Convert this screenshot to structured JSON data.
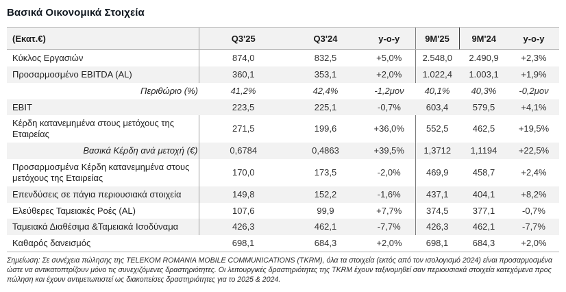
{
  "page": {
    "title": "Βασικά Οικονομικά Στοιχεία"
  },
  "colors": {
    "title_text": "#111820",
    "header_bg": "#f2f2f2",
    "stripe_bg": "#f2f2f2",
    "outer_border": "#b3b3b3",
    "separator_light": "#9c9c9c",
    "separator_dark": "#7d7d7d",
    "header_mid_divider": "#3c3c3c"
  },
  "table": {
    "unit_header": "(Εκατ.€)",
    "columns": [
      "Q3'25",
      "Q3'24",
      "y-o-y",
      "9M'25",
      "9M'24",
      "y-o-y"
    ],
    "rows": [
      {
        "label": "Κύκλος Εργασιών",
        "values": [
          "874,0",
          "832,5",
          "+5,0%",
          "2.548,0",
          "2.490,9",
          "+2,3%"
        ],
        "italic": "",
        "label_align": "left",
        "separators": true
      },
      {
        "label": "Προσαρμοσμένο EBITDA (AL)",
        "values": [
          "360,1",
          "353,1",
          "+2,0%",
          "1.022,4",
          "1.003,1",
          "+1,9%"
        ],
        "italic": "",
        "label_align": "left",
        "separators": true
      },
      {
        "label": "Περιθώριο (%)",
        "values": [
          "41,2%",
          "42,4%",
          "-1,2μον",
          "40,1%",
          "40,3%",
          "-0,2μον"
        ],
        "italic": "row",
        "label_align": "right",
        "separators": false
      },
      {
        "label": "EBIT",
        "values": [
          "223,5",
          "225,1",
          "-0,7%",
          "603,4",
          "579,5",
          "+4,1%"
        ],
        "italic": "",
        "label_align": "left",
        "separators": false
      },
      {
        "label": "Κέρδη κατανεμημένα στους μετόχους της Εταιρείας",
        "values": [
          "271,5",
          "199,6",
          "+36,0%",
          "552,5",
          "462,5",
          "+19,5%"
        ],
        "italic": "",
        "label_align": "left",
        "separators": true
      },
      {
        "label": "Βασικά Κέρδη ανά μετοχή (€)",
        "values": [
          "0,6784",
          "0,4863",
          "+39,5%",
          "1,3712",
          "1,1194",
          "+22,5%"
        ],
        "italic": "label",
        "label_align": "right",
        "separators": true
      },
      {
        "label": "Προσαρμοσμένα Κέρδη κατανεμημένα στους μετόχους της Εταιρείας",
        "values": [
          "170,0",
          "173,5",
          "-2,0%",
          "469,9",
          "458,7",
          "+2,4%"
        ],
        "italic": "",
        "label_align": "left",
        "separators": true
      },
      {
        "label": "Επενδύσεις σε πάγια περιουσιακά στοιχεία",
        "values": [
          "149,8",
          "152,2",
          "-1,6%",
          "437,1",
          "404,1",
          "+8,2%"
        ],
        "italic": "",
        "label_align": "left",
        "separators": true
      },
      {
        "label": "Ελεύθερες Ταμειακές Ροές (AL)",
        "values": [
          "107,6",
          "99,9",
          "+7,7%",
          "374,5",
          "377,1",
          "-0,7%"
        ],
        "italic": "",
        "label_align": "left",
        "separators": true
      },
      {
        "label": "Ταμειακά Διαθέσιμα &Ταμειακά Ισοδύναμα",
        "values": [
          "426,3",
          "462,1",
          "-7,7%",
          "426,3",
          "462,1",
          "-7,7%"
        ],
        "italic": "",
        "label_align": "left",
        "separators": true
      },
      {
        "label": "Καθαρός δανεισμός",
        "values": [
          "698,1",
          "684,3",
          "+2,0%",
          "698,1",
          "684,3",
          "+2,0%"
        ],
        "italic": "",
        "label_align": "left",
        "separators": false
      }
    ]
  },
  "footnote": "Σημείωση: Σε συνέχεια πώλησης της TELEKOM ROMANIA MOBILE COMMUNICATIONS (TKRM), όλα τα στοιχεία (εκτός από τον ισολογισμό 2024) είναι προσαρμοσμένα ώστε να αντικατοπτρίζουν μόνο τις συνεχιζόμενες δραστηριότητες. Οι λειτουργικές δραστηριότητες της TKRM έχουν ταξινομηθεί σαν περιουσιακά στοιχεία κατεχόμενα προς πώληση και έχουν αντιμετωπιστεί ως διακοπείσες δραστηριότητες  για το 2025 & 2024."
}
